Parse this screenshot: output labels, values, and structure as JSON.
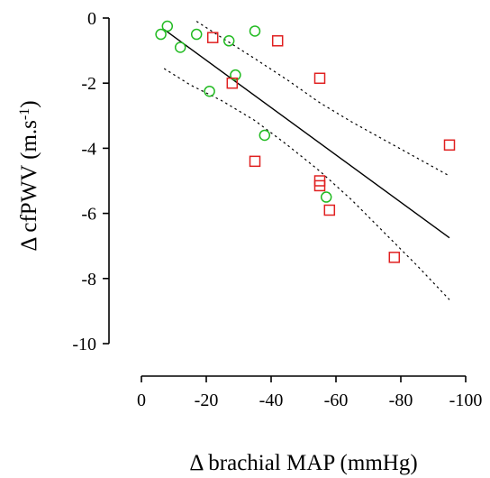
{
  "chart_data": {
    "type": "scatter",
    "xlabel": "Δ brachial MAP (mmHg)",
    "ylabel_prefix": "Δ cfPWV (m.s",
    "ylabel_sup": "-1",
    "ylabel_suffix": ")",
    "xlim": [
      0,
      -100
    ],
    "ylim": [
      -10,
      0
    ],
    "x_ticks": [
      0,
      -20,
      -40,
      -60,
      -80,
      -100
    ],
    "x_tick_labels": [
      "0",
      "-20",
      "-40",
      "-60",
      "-80",
      "-100"
    ],
    "y_ticks": [
      0,
      -2,
      -4,
      -6,
      -8,
      -10
    ],
    "y_tick_labels": [
      "0",
      "-2",
      "-4",
      "-6",
      "-8",
      "-10"
    ],
    "grid": false,
    "series": [
      {
        "marker": "circle",
        "color": "#22bb22",
        "points": [
          [
            -6,
            -0.5
          ],
          [
            -8,
            -0.25
          ],
          [
            -12,
            -0.9
          ],
          [
            -17,
            -0.5
          ],
          [
            -21,
            -2.25
          ],
          [
            -27,
            -0.7
          ],
          [
            -29,
            -1.75
          ],
          [
            -35,
            -0.4
          ],
          [
            -38,
            -3.6
          ],
          [
            -57,
            -5.5
          ]
        ]
      },
      {
        "marker": "square",
        "color": "#e02020",
        "points": [
          [
            -22,
            -0.6
          ],
          [
            -28,
            -2.0
          ],
          [
            -35,
            -4.4
          ],
          [
            -42,
            -0.7
          ],
          [
            -55,
            -1.85
          ],
          [
            -55,
            -5.0
          ],
          [
            -55,
            -5.15
          ],
          [
            -58,
            -5.9
          ],
          [
            -78,
            -7.35
          ],
          [
            -95,
            -3.9
          ]
        ]
      }
    ],
    "regression": {
      "x": [
        -7,
        -95
      ],
      "y": [
        -0.35,
        -6.75
      ]
    },
    "ci_upper": {
      "x": [
        -17,
        -24,
        -35,
        -45,
        -55,
        -65,
        -75,
        -85,
        -95
      ],
      "y": [
        -0.1,
        -0.55,
        -1.25,
        -1.9,
        -2.6,
        -3.2,
        -3.75,
        -4.3,
        -4.85
      ]
    },
    "ci_lower": {
      "x": [
        -7,
        -15,
        -25,
        -35,
        -45,
        -55,
        -65,
        -75,
        -85,
        -95
      ],
      "y": [
        -1.55,
        -2.05,
        -2.55,
        -3.15,
        -3.9,
        -4.7,
        -5.6,
        -6.6,
        -7.6,
        -8.65
      ]
    }
  }
}
